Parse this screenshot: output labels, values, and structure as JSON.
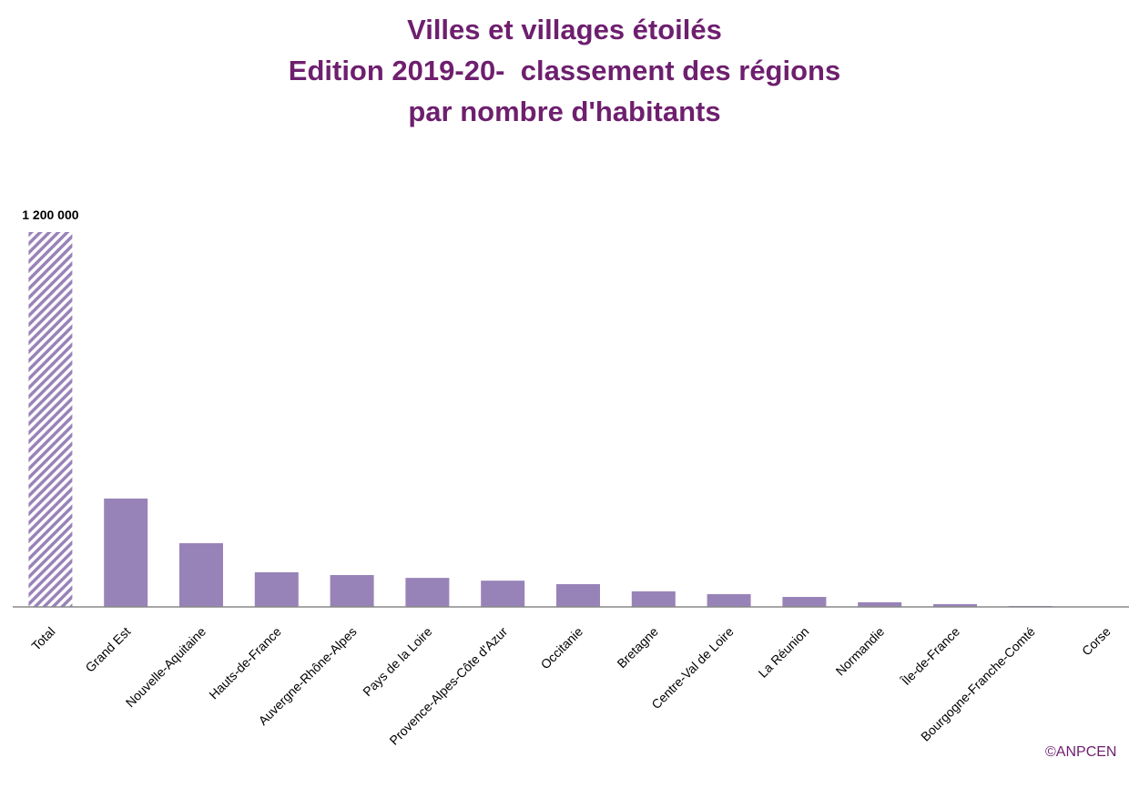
{
  "chart_data": {
    "type": "bar",
    "title": "Villes et villages étoilés\nEdition 2019-20-  classement des régions\npar nombre d'habitants",
    "categories": [
      "Total",
      "Grand Est",
      "Nouvelle-Aquitaine",
      "Hauts-de-France",
      "Auvergne-Rhône-Alpes",
      "Pays de la Loire",
      "Provence-Alpes-Côte d'Azur",
      "Occitanie",
      "Bretagne",
      "Centre-Val de Loire",
      "La Réunion",
      "Normandie",
      "Île-de-France",
      "Bourgogne-Franche-Comté",
      "Corse"
    ],
    "values": [
      1200000,
      347000,
      204000,
      111000,
      102000,
      93000,
      84000,
      73000,
      50000,
      41000,
      32000,
      15000,
      9000,
      3000,
      1000
    ],
    "value_labels": [
      "1 200 000",
      null,
      null,
      null,
      null,
      null,
      null,
      null,
      null,
      null,
      null,
      null,
      null,
      null,
      null
    ],
    "hatched": [
      true,
      false,
      false,
      false,
      false,
      false,
      false,
      false,
      false,
      false,
      false,
      false,
      false,
      false,
      false
    ],
    "color": "#9883b8",
    "annotation": "©ANPCEN"
  }
}
